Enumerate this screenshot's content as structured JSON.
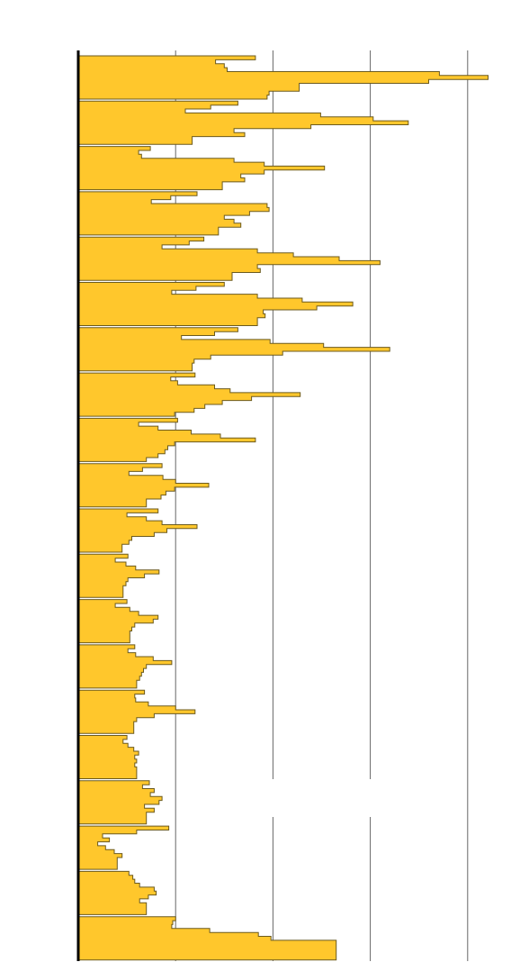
{
  "chart_data": {
    "type": "area",
    "orientation": "horizontal",
    "style": "stepped ridgeline",
    "title": "",
    "xlabel": "",
    "ylabel": "",
    "xlim": [
      0,
      4.5
    ],
    "grid": true,
    "legend": "none",
    "colors": {
      "fill": "#ffc72c",
      "stroke": "#6b5a1e",
      "grid": "#666666",
      "axis": "#000000"
    },
    "series": [
      {
        "values": [
          1.82,
          1.41,
          1.5,
          1.53,
          3.71,
          4.21,
          3.6,
          2.27,
          2.27,
          1.96,
          1.94
        ]
      },
      {
        "values": [
          1.64,
          1.36,
          1.1,
          2.49,
          3.03,
          3.39,
          2.39,
          1.6,
          1.71,
          1.17,
          1.17
        ]
      },
      {
        "values": [
          0.74,
          0.62,
          0.65,
          1.6,
          1.91,
          2.53,
          1.91,
          1.67,
          1.71,
          1.48,
          1.48
        ]
      },
      {
        "values": [
          1.22,
          0.95,
          0.75,
          1.94,
          1.96,
          1.76,
          1.5,
          1.6,
          1.67,
          1.44,
          1.44
        ]
      },
      {
        "values": [
          1.29,
          1.14,
          0.86,
          1.84,
          2.21,
          2.68,
          3.1,
          1.84,
          1.87,
          1.58,
          1.58
        ]
      },
      {
        "values": [
          1.5,
          1.21,
          0.96,
          1.84,
          2.3,
          2.82,
          2.45,
          1.9,
          1.92,
          1.84,
          1.84
        ]
      },
      {
        "values": [
          1.64,
          1.4,
          1.06,
          1.97,
          2.52,
          3.2,
          2.1,
          1.36,
          1.19,
          1.17,
          1.17
        ]
      },
      {
        "values": [
          1.2,
          0.95,
          1.02,
          1.4,
          1.56,
          2.28,
          1.78,
          1.48,
          1.3,
          1.19,
          0.99
        ]
      },
      {
        "values": [
          1.02,
          0.62,
          0.82,
          1.16,
          1.46,
          1.82,
          0.99,
          0.92,
          0.89,
          0.82,
          0.7
        ]
      },
      {
        "values": [
          0.86,
          0.66,
          0.52,
          0.87,
          1.0,
          1.34,
          0.99,
          0.9,
          0.85,
          0.7,
          0.7
        ]
      },
      {
        "values": [
          0.82,
          0.5,
          0.7,
          0.86,
          1.22,
          0.91,
          0.78,
          0.55,
          0.52,
          0.45,
          0.45
        ]
      },
      {
        "values": [
          0.51,
          0.38,
          0.49,
          0.59,
          0.83,
          0.68,
          0.51,
          0.49,
          0.46,
          0.46,
          0.46
        ]
      },
      {
        "values": [
          0.5,
          0.38,
          0.53,
          0.62,
          0.82,
          0.77,
          0.58,
          0.55,
          0.53,
          0.53,
          0.53
        ]
      },
      {
        "values": [
          0.58,
          0.51,
          0.59,
          0.77,
          0.96,
          0.7,
          0.67,
          0.65,
          0.63,
          0.6,
          0.6
        ]
      },
      {
        "values": [
          0.68,
          0.58,
          0.59,
          0.72,
          1.0,
          1.2,
          0.78,
          0.6,
          0.57,
          0.57,
          0.57
        ]
      },
      {
        "values": [
          0.5,
          0.46,
          0.51,
          0.57,
          0.62,
          0.58,
          0.6,
          0.58,
          0.6,
          0.6,
          0.6
        ]
      },
      {
        "values": [
          0.73,
          0.66,
          0.78,
          0.74,
          0.86,
          0.83,
          0.68,
          0.78,
          0.7,
          0.7,
          0.7
        ]
      },
      {
        "values": [
          0.93,
          0.6,
          0.25,
          0.32,
          0.2,
          0.28,
          0.37,
          0.45,
          0.4,
          0.4,
          0.4
        ]
      },
      {
        "values": [
          0.52,
          0.56,
          0.58,
          0.63,
          0.78,
          0.8,
          0.72,
          0.63,
          0.7,
          0.7,
          0.7
        ]
      },
      {
        "values": [
          1.0,
          0.97,
          0.96,
          1.35,
          1.85,
          1.98,
          2.65,
          2.65,
          2.65,
          2.65,
          2.65
        ]
      }
    ]
  }
}
